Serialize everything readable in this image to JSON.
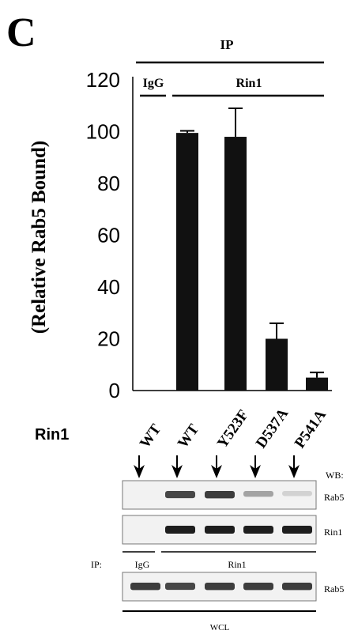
{
  "panel_label": "C",
  "chart_data": {
    "type": "bar",
    "ylabel": "(Relative Rab5 Bound)",
    "ylim": [
      0,
      120
    ],
    "yticks": [
      "0",
      "20",
      "40",
      "60",
      "80",
      "100",
      "120"
    ],
    "ip_header": "IP",
    "groups": [
      {
        "label": "IgG"
      },
      {
        "label": "Rin1"
      }
    ],
    "categories": [
      "IgG",
      "WT",
      "Y523F",
      "D537A",
      "P541A"
    ],
    "values": [
      0,
      99.5,
      98,
      20,
      5
    ],
    "errors": [
      0,
      0.8,
      11,
      6,
      2
    ],
    "bar_color": "#111111"
  },
  "lanes": {
    "row_label": "Rin1",
    "labels": [
      "WT",
      "WT",
      "Y523F",
      "D537A",
      "P541A"
    ]
  },
  "blots": {
    "wb_label": "WB:",
    "ip_label": "IP:",
    "ip_groups": [
      "IgG",
      "Rin1"
    ],
    "wcl_label": "WCL",
    "strips": [
      {
        "name": "Rab5",
        "section": "IP",
        "intensities": [
          0,
          0.8,
          0.85,
          0.35,
          0.12
        ]
      },
      {
        "name": "Rin1",
        "section": "IP",
        "intensities": [
          0,
          1.0,
          1.0,
          1.0,
          1.0
        ]
      },
      {
        "name": "Rab5",
        "section": "WCL",
        "intensities": [
          0.85,
          0.8,
          0.85,
          0.85,
          0.85
        ]
      }
    ]
  }
}
